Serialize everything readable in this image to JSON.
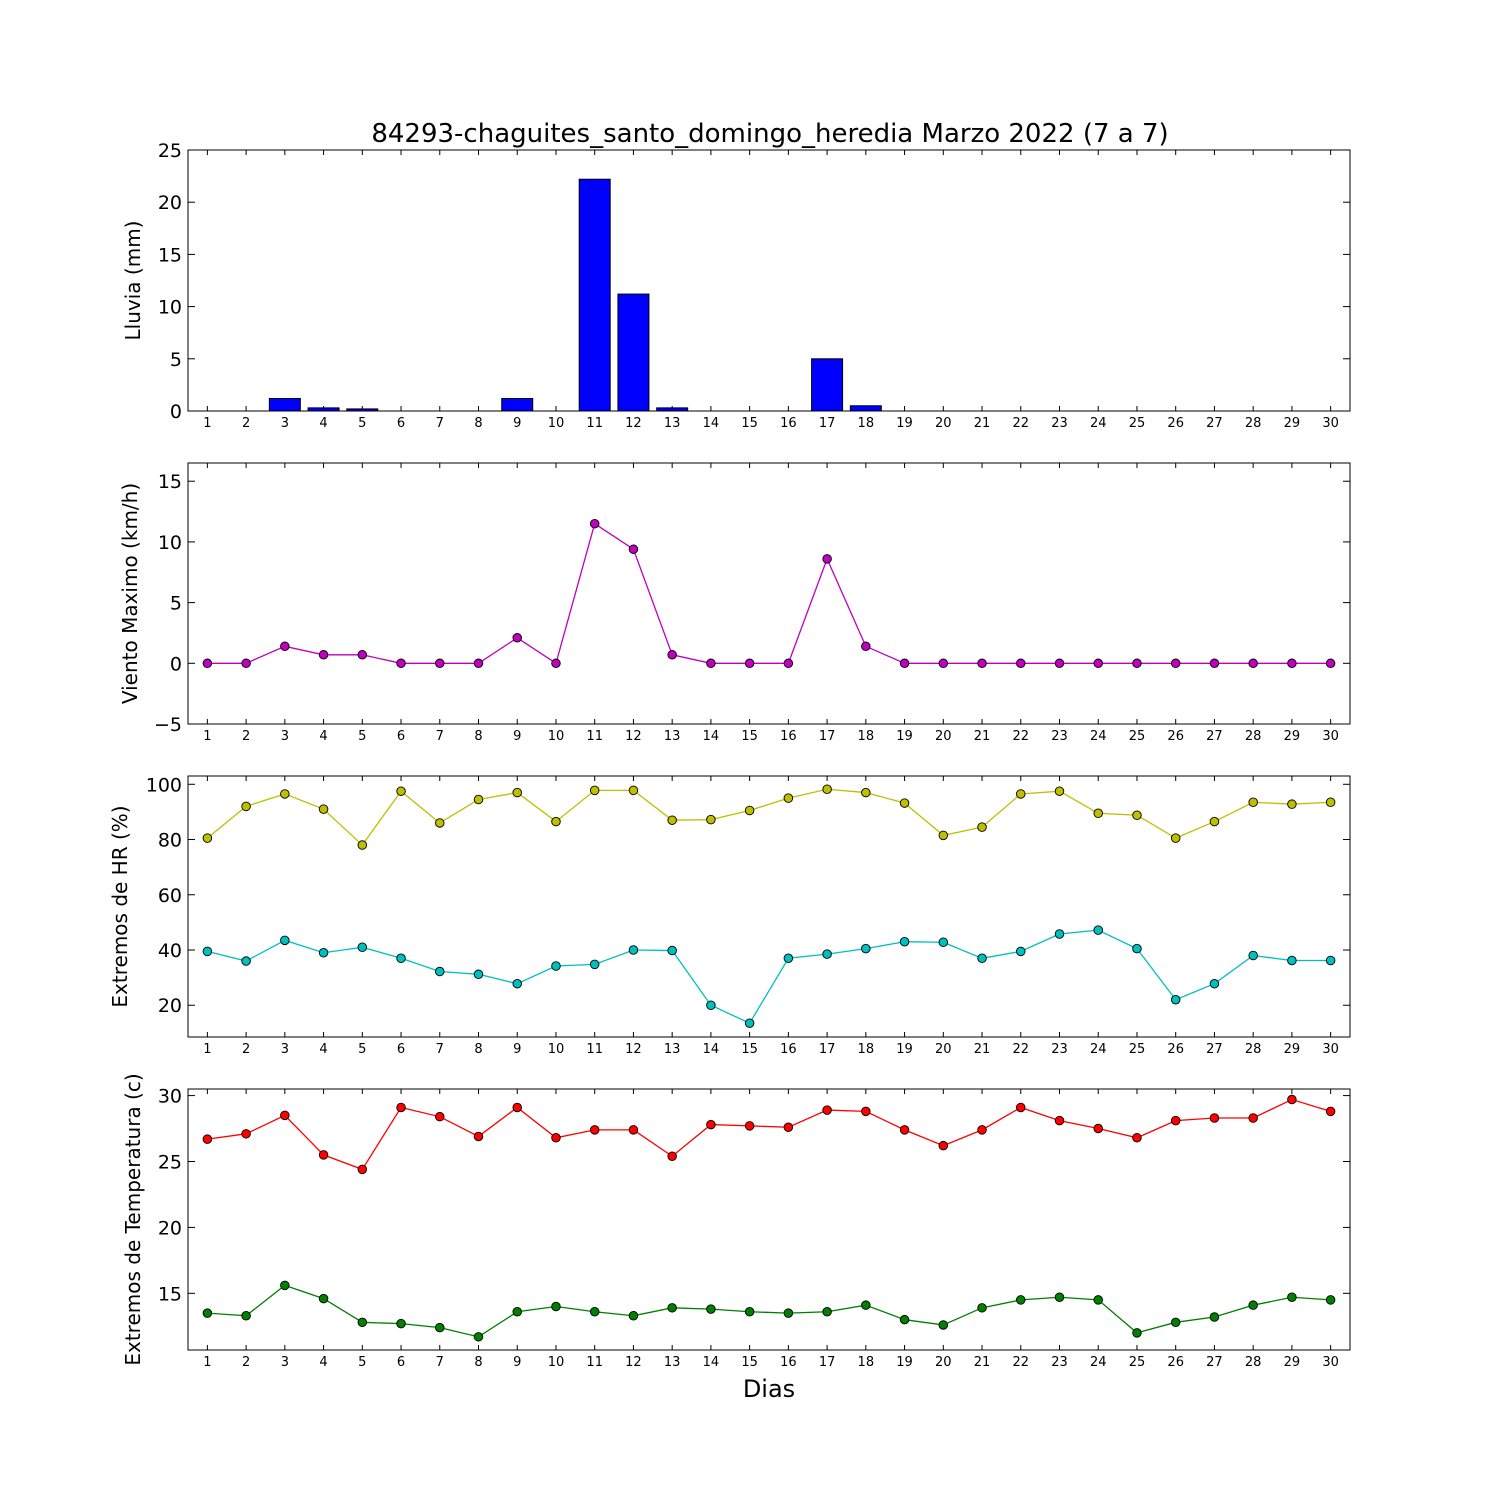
{
  "title": "84293-chaguites_santo_domingo_heredia Marzo 2022  (7 a 7)",
  "xlabel": "Dias",
  "days": [
    1,
    2,
    3,
    4,
    5,
    6,
    7,
    8,
    9,
    10,
    11,
    12,
    13,
    14,
    15,
    16,
    17,
    18,
    19,
    20,
    21,
    22,
    23,
    24,
    25,
    26,
    27,
    28,
    29,
    30
  ],
  "chart_data": [
    {
      "type": "bar",
      "ylabel": "Lluvia (mm)",
      "ylim": [
        0,
        25
      ],
      "yticks": [
        0,
        5,
        10,
        15,
        20,
        25
      ],
      "series": [
        {
          "color": "#0000ff",
          "values": [
            0,
            0,
            1.2,
            0.3,
            0.2,
            0,
            0,
            0,
            1.2,
            0,
            22.2,
            11.2,
            0.3,
            0,
            0,
            0,
            5.0,
            0.5,
            0,
            0,
            0,
            0,
            0,
            0,
            0,
            0,
            0,
            0,
            0,
            0
          ]
        }
      ]
    },
    {
      "type": "line",
      "ylabel": "Viento Maximo (km/h)",
      "ylim": [
        -5,
        16.5
      ],
      "yticks": [
        -5,
        0,
        5,
        10,
        15
      ],
      "series": [
        {
          "color": "#bf00bf",
          "values": [
            0,
            0,
            1.4,
            0.7,
            0.7,
            0,
            0,
            0,
            2.1,
            0,
            11.5,
            9.4,
            0.7,
            0,
            0,
            0,
            8.6,
            1.4,
            0,
            0,
            0,
            0,
            0,
            0,
            0,
            0,
            0,
            0,
            0,
            0
          ]
        }
      ]
    },
    {
      "type": "line",
      "ylabel": "Extremos de HR (%)",
      "ylim": [
        8.5,
        103
      ],
      "yticks": [
        20,
        40,
        60,
        80,
        100
      ],
      "series": [
        {
          "color": "#bfbf00",
          "values": [
            80.5,
            92,
            96.5,
            91,
            78,
            97.5,
            86,
            94.5,
            97,
            86.5,
            97.8,
            97.8,
            87,
            87.2,
            90.5,
            95,
            98.2,
            97,
            93.2,
            81.5,
            84.5,
            96.5,
            97.5,
            89.5,
            88.8,
            80.5,
            86.5,
            93.5,
            92.8,
            93.5
          ]
        },
        {
          "color": "#00bfbf",
          "values": [
            39.5,
            36,
            43.5,
            39,
            41,
            37,
            32.2,
            31.2,
            27.8,
            34.2,
            34.8,
            40,
            39.8,
            20,
            13.5,
            37,
            38.5,
            40.5,
            43,
            42.8,
            37,
            39.5,
            45.8,
            47.2,
            40.5,
            22,
            27.8,
            38,
            36.2,
            36.2
          ]
        }
      ]
    },
    {
      "type": "line",
      "ylabel": "Extremos de Temperatura (c)",
      "ylim": [
        10.7,
        30.5
      ],
      "yticks": [
        15,
        20,
        25,
        30
      ],
      "series": [
        {
          "color": "#ff0000",
          "values": [
            26.7,
            27.1,
            28.5,
            25.5,
            24.4,
            29.1,
            28.4,
            26.9,
            29.1,
            26.8,
            27.4,
            27.4,
            25.4,
            27.8,
            27.7,
            27.6,
            28.9,
            28.8,
            27.4,
            26.2,
            27.4,
            29.1,
            28.1,
            27.5,
            26.8,
            28.1,
            28.3,
            28.3,
            29.7,
            28.8
          ]
        },
        {
          "color": "#007f00",
          "values": [
            13.5,
            13.3,
            15.6,
            14.6,
            12.8,
            12.7,
            12.4,
            11.7,
            13.6,
            14.0,
            13.6,
            13.3,
            13.9,
            13.8,
            13.6,
            13.5,
            13.6,
            14.1,
            13.0,
            12.6,
            13.9,
            14.5,
            14.7,
            14.5,
            12.0,
            12.8,
            13.2,
            14.1,
            14.7,
            14.5
          ]
        }
      ]
    }
  ]
}
